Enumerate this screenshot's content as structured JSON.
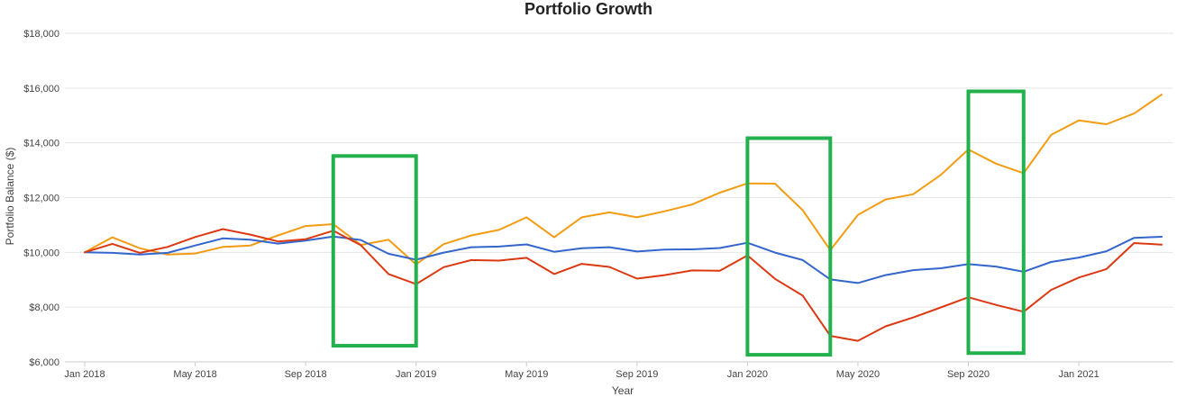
{
  "chart_data": {
    "type": "line",
    "title": "Portfolio Growth",
    "xlabel": "Year",
    "ylabel": "Portfolio Balance ($)",
    "ylim": [
      6000,
      18000
    ],
    "grid": true,
    "x_ticks": [
      "Jan 2018",
      "May 2018",
      "Sep 2018",
      "Jan 2019",
      "May 2019",
      "Sep 2019",
      "Jan 2020",
      "May 2020",
      "Sep 2020",
      "Jan 2021"
    ],
    "y_ticks": [
      "$6,000",
      "$8,000",
      "$10,000",
      "$12,000",
      "$14,000",
      "$16,000",
      "$18,000"
    ],
    "x": [
      "2018-01",
      "2018-02",
      "2018-03",
      "2018-04",
      "2018-05",
      "2018-06",
      "2018-07",
      "2018-08",
      "2018-09",
      "2018-10",
      "2018-11",
      "2018-12",
      "2019-01",
      "2019-02",
      "2019-03",
      "2019-04",
      "2019-05",
      "2019-06",
      "2019-07",
      "2019-08",
      "2019-09",
      "2019-10",
      "2019-11",
      "2019-12",
      "2020-01",
      "2020-02",
      "2020-03",
      "2020-04",
      "2020-05",
      "2020-06",
      "2020-07",
      "2020-08",
      "2020-09",
      "2020-10",
      "2020-11",
      "2020-12",
      "2021-01",
      "2021-02",
      "2021-03",
      "2021-04"
    ],
    "series": [
      {
        "color": "#f39c12",
        "values": [
          10000,
          10550,
          10150,
          9920,
          9960,
          10200,
          10250,
          10620,
          10960,
          11030,
          10270,
          10460,
          9560,
          10300,
          10620,
          10820,
          11280,
          10550,
          11280,
          11460,
          11280,
          11500,
          11750,
          12180,
          12520,
          12510,
          11540,
          10080,
          11370,
          11930,
          12120,
          12830,
          13760,
          13240,
          12890,
          14290,
          14820,
          14680,
          15070,
          15760
        ]
      },
      {
        "color": "#3366cc",
        "values": [
          10000,
          9980,
          9920,
          9980,
          10250,
          10510,
          10460,
          10320,
          10430,
          10580,
          10450,
          9950,
          9730,
          9990,
          10190,
          10210,
          10290,
          10020,
          10150,
          10190,
          10030,
          10100,
          10110,
          10160,
          10350,
          9990,
          9720,
          9010,
          8880,
          9170,
          9350,
          9420,
          9570,
          9480,
          9290,
          9650,
          9810,
          10040,
          10530,
          10570
        ]
      },
      {
        "color": "#dc3912",
        "values": [
          10000,
          10310,
          9980,
          10200,
          10560,
          10850,
          10650,
          10400,
          10480,
          10790,
          10260,
          9210,
          8840,
          9460,
          9720,
          9700,
          9800,
          9210,
          9580,
          9470,
          9040,
          9170,
          9340,
          9330,
          9890,
          9030,
          8420,
          6950,
          6770,
          7300,
          7620,
          7990,
          8360,
          8080,
          7830,
          8630,
          9080,
          9390,
          10340,
          10280
        ]
      }
    ],
    "annotations": [
      {
        "type": "highlight-box",
        "color": "#22b14c",
        "x_from": "2018-10",
        "x_to": "2019-01",
        "y_from": 6590,
        "y_to": 13520
      },
      {
        "type": "highlight-box",
        "color": "#22b14c",
        "x_from": "2020-01",
        "x_to": "2020-04",
        "y_from": 6260,
        "y_to": 14170
      },
      {
        "type": "highlight-box",
        "color": "#22b14c",
        "x_from": "2020-09",
        "x_to": "2020-11",
        "y_from": 6320,
        "y_to": 15880
      }
    ]
  }
}
